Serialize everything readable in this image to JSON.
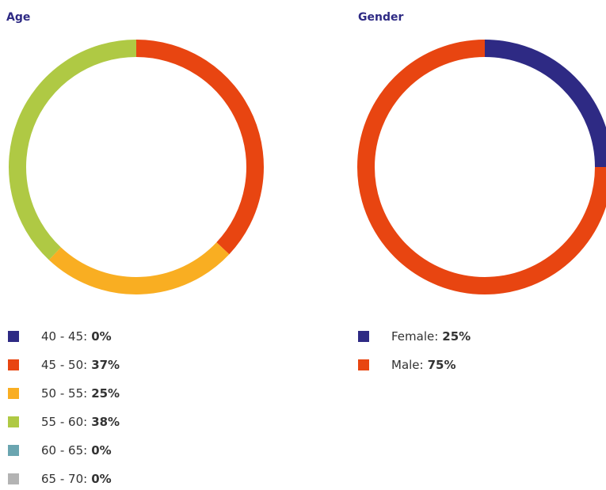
{
  "chart_data": [
    {
      "type": "pie",
      "title": "Age",
      "categories": [
        "40 - 45:",
        "45 - 50:",
        "50 - 55:",
        "55 - 60:",
        "60 - 65:",
        "65 - 70:"
      ],
      "values": [
        0,
        37,
        25,
        38,
        0,
        0
      ],
      "value_labels": [
        "0%",
        "37%",
        "25%",
        "38%",
        "0%",
        "0%"
      ],
      "colors": [
        "#2e2a84",
        "#e84511",
        "#f9ae22",
        "#afc944",
        "#6aa5b0",
        "#b3b3b3"
      ]
    },
    {
      "type": "pie",
      "title": "Gender",
      "categories": [
        "Female:",
        "Male:"
      ],
      "values": [
        25,
        75
      ],
      "value_labels": [
        "25%",
        "75%"
      ],
      "colors": [
        "#2e2a84",
        "#e84511"
      ]
    }
  ]
}
